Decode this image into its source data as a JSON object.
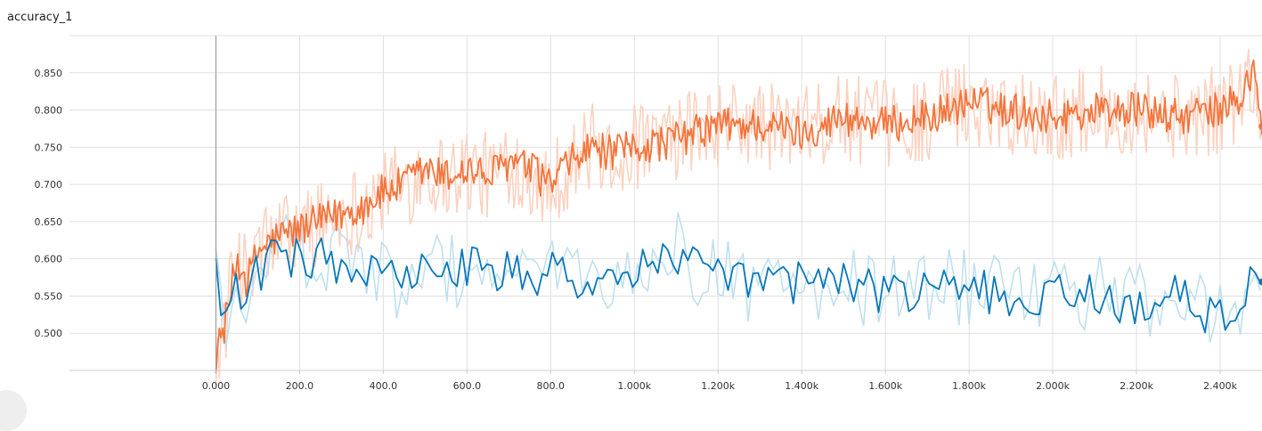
{
  "title": "accuracy_1",
  "chart_data": {
    "type": "line",
    "title": "accuracy_1",
    "xlabel": "",
    "ylabel": "",
    "xlim": [
      -350,
      2500
    ],
    "ylim": [
      0.45,
      0.9
    ],
    "grid": true,
    "x_ticks": [
      {
        "value": 0,
        "label": "0.000"
      },
      {
        "value": 200,
        "label": "200.0"
      },
      {
        "value": 400,
        "label": "400.0"
      },
      {
        "value": 600,
        "label": "600.0"
      },
      {
        "value": 800,
        "label": "800.0"
      },
      {
        "value": 1000,
        "label": "1.000k"
      },
      {
        "value": 1200,
        "label": "1.200k"
      },
      {
        "value": 1400,
        "label": "1.400k"
      },
      {
        "value": 1600,
        "label": "1.600k"
      },
      {
        "value": 1800,
        "label": "1.800k"
      },
      {
        "value": 2000,
        "label": "2.000k"
      },
      {
        "value": 2200,
        "label": "2.200k"
      },
      {
        "value": 2400,
        "label": "2.400k"
      }
    ],
    "y_ticks": [
      {
        "value": 0.5,
        "label": "0.500"
      },
      {
        "value": 0.55,
        "label": "0.550"
      },
      {
        "value": 0.6,
        "label": "0.600"
      },
      {
        "value": 0.65,
        "label": "0.650"
      },
      {
        "value": 0.7,
        "label": "0.700"
      },
      {
        "value": 0.75,
        "label": "0.750"
      },
      {
        "value": 0.8,
        "label": "0.800"
      },
      {
        "value": 0.85,
        "label": "0.850"
      }
    ],
    "colors": {
      "train": "#f4743b",
      "train_raw": "#fbd2c1",
      "eval": "#0877b8",
      "eval_raw": "#bfe0ef",
      "grid": "#e0e0e0",
      "zero_axis": "#9e9e9e"
    },
    "series": [
      {
        "color": "#f4743b",
        "x": [
          0,
          25,
          50,
          75,
          100,
          150,
          200,
          250,
          300,
          350,
          400,
          450,
          500,
          550,
          600,
          650,
          700,
          750,
          800,
          850,
          900,
          950,
          1000,
          1100,
          1200,
          1300,
          1400,
          1500,
          1600,
          1700,
          1800,
          1900,
          2000,
          2100,
          2200,
          2300,
          2400,
          2450,
          2480,
          2500
        ],
        "y": [
          0.47,
          0.52,
          0.6,
          0.57,
          0.61,
          0.63,
          0.64,
          0.65,
          0.66,
          0.67,
          0.69,
          0.7,
          0.72,
          0.71,
          0.72,
          0.71,
          0.73,
          0.72,
          0.7,
          0.73,
          0.75,
          0.74,
          0.75,
          0.76,
          0.78,
          0.78,
          0.77,
          0.79,
          0.78,
          0.79,
          0.81,
          0.8,
          0.79,
          0.8,
          0.8,
          0.79,
          0.8,
          0.82,
          0.85,
          0.778
        ]
      },
      {
        "color": "#0877b8",
        "x": [
          0,
          25,
          50,
          75,
          100,
          150,
          200,
          250,
          300,
          350,
          400,
          450,
          500,
          550,
          600,
          650,
          700,
          750,
          800,
          850,
          900,
          950,
          1000,
          1100,
          1200,
          1300,
          1400,
          1500,
          1600,
          1700,
          1800,
          1900,
          2000,
          2100,
          2200,
          2300,
          2400,
          2450,
          2480,
          2500
        ],
        "y": [
          0.6,
          0.5,
          0.57,
          0.55,
          0.58,
          0.61,
          0.6,
          0.6,
          0.59,
          0.58,
          0.58,
          0.57,
          0.58,
          0.58,
          0.59,
          0.58,
          0.58,
          0.57,
          0.58,
          0.57,
          0.58,
          0.57,
          0.58,
          0.61,
          0.57,
          0.57,
          0.57,
          0.57,
          0.55,
          0.56,
          0.56,
          0.55,
          0.55,
          0.55,
          0.54,
          0.55,
          0.52,
          0.54,
          0.57,
          0.569
        ]
      }
    ]
  }
}
